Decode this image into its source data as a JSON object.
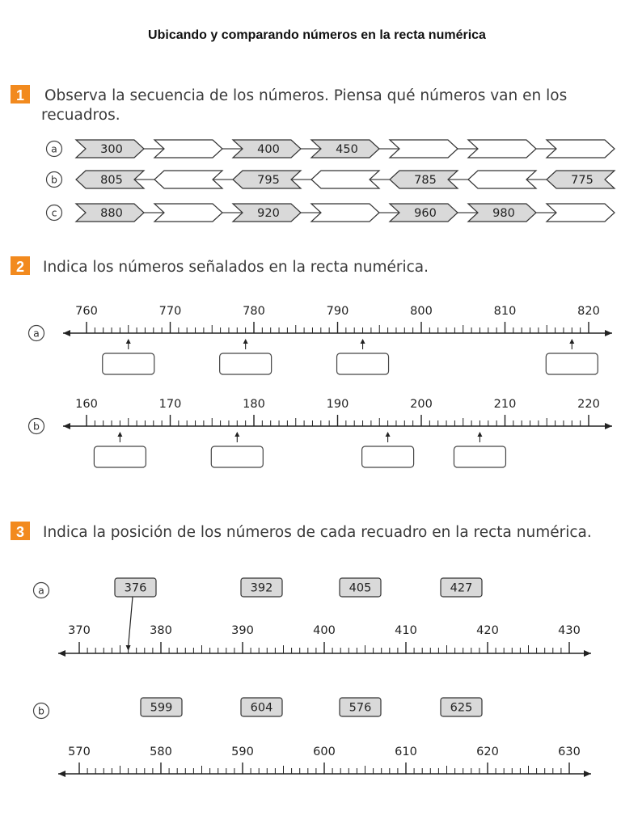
{
  "title": "Ubicando y comparando números en la recta numérica",
  "sections": [
    {
      "number": "1",
      "instruction_line1": "Observa la secuencia de los números. Piensa qué números van en los",
      "instruction_line2": "recuadros.",
      "rows": [
        {
          "label": "a",
          "direction": "right",
          "values": [
            "300",
            "",
            "400",
            "450",
            "",
            "",
            ""
          ]
        },
        {
          "label": "b",
          "direction": "left",
          "values": [
            "805",
            "",
            "795",
            "",
            "785",
            "",
            "775"
          ]
        },
        {
          "label": "c",
          "direction": "right",
          "values": [
            "880",
            "",
            "920",
            "",
            "960",
            "980",
            ""
          ]
        }
      ]
    },
    {
      "number": "2",
      "instruction": "Indica los números señalados en la recta numérica.",
      "lines": [
        {
          "label": "a",
          "ticks": [
            "760",
            "770",
            "780",
            "790",
            "800",
            "810",
            "820"
          ],
          "start": 760,
          "step": 10,
          "marked_values": [
            765,
            779,
            793,
            818
          ]
        },
        {
          "label": "b",
          "ticks": [
            "160",
            "170",
            "180",
            "190",
            "200",
            "210",
            "220"
          ],
          "start": 160,
          "step": 10,
          "marked_values": [
            164,
            178,
            196,
            207
          ]
        }
      ]
    },
    {
      "number": "3",
      "instruction": "Indica la posición de los números de cada recuadro en la recta numérica.",
      "lines": [
        {
          "label": "a",
          "boxes": [
            "376",
            "392",
            "405",
            "427"
          ],
          "ticks": [
            "370",
            "380",
            "390",
            "400",
            "410",
            "420",
            "430"
          ],
          "start": 370,
          "step": 10,
          "example_value": 376
        },
        {
          "label": "b",
          "boxes": [
            "599",
            "604",
            "576",
            "625"
          ],
          "ticks": [
            "570",
            "580",
            "590",
            "600",
            "610",
            "620",
            "630"
          ],
          "start": 570,
          "step": 10
        }
      ]
    }
  ],
  "colors": {
    "badge": "#f28a1e",
    "filled_box": "#d9d9d9",
    "line": "#222222"
  }
}
